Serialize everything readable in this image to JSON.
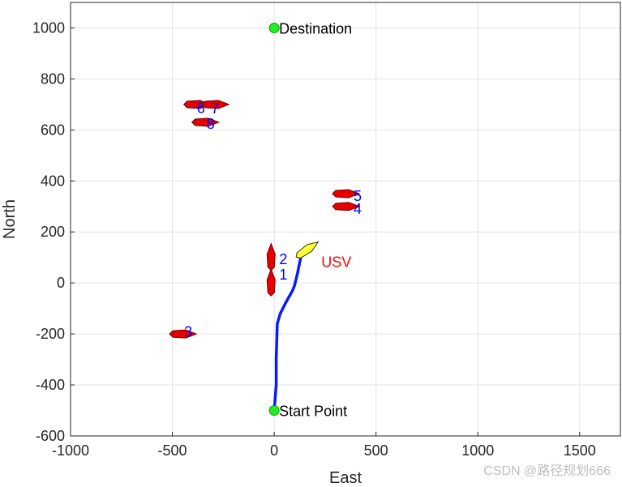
{
  "chart_data": {
    "type": "scatter",
    "title": "",
    "xlabel": "East",
    "ylabel": "North",
    "xlim": [
      -1000,
      1700
    ],
    "ylim": [
      -600,
      1100
    ],
    "xticks": [
      -1000,
      -500,
      0,
      500,
      1000,
      1500
    ],
    "yticks": [
      -600,
      -400,
      -200,
      0,
      200,
      400,
      600,
      800,
      1000
    ],
    "grid": true,
    "points": [
      {
        "label": "Destination",
        "x": 0,
        "y": 1000
      },
      {
        "label": "Start Point",
        "x": 0,
        "y": -500
      }
    ],
    "path": {
      "color": "#0a1aff",
      "x": [
        0,
        10,
        10,
        15,
        30,
        55,
        90,
        100,
        115,
        130,
        150
      ],
      "y": [
        -500,
        -400,
        -300,
        -160,
        -120,
        -80,
        -30,
        -10,
        40,
        100,
        120
      ]
    },
    "usv": {
      "label": "USV",
      "x": 160,
      "y": 130,
      "heading_deg": 40,
      "label_color": "#ff0000",
      "fill": "#ffff33"
    },
    "obstacles": [
      {
        "label": "1",
        "x": -15,
        "y": 0,
        "heading_deg": 0
      },
      {
        "label": "2",
        "x": -15,
        "y": 100,
        "heading_deg": 0
      },
      {
        "label": "3",
        "x": -450,
        "y": -200,
        "heading_deg": 90
      },
      {
        "label": "4",
        "x": 350,
        "y": 300,
        "heading_deg": 90
      },
      {
        "label": "5",
        "x": 350,
        "y": 350,
        "heading_deg": 90
      },
      {
        "label": "6",
        "x": -380,
        "y": 700,
        "heading_deg": 90
      },
      {
        "label": "7",
        "x": -290,
        "y": 700,
        "heading_deg": 90
      },
      {
        "label": "8",
        "x": -340,
        "y": 630,
        "heading_deg": 90
      }
    ],
    "colors": {
      "obstacle_fill": "#e60000",
      "obstacle_label": "#0000ff",
      "point_fill": "#22ee22"
    }
  },
  "watermark": "CSDN @路径规划666"
}
